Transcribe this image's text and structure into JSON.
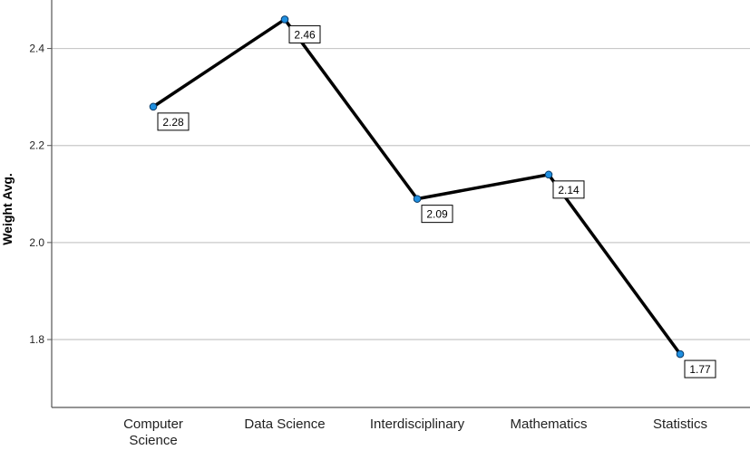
{
  "chart_data": {
    "type": "line",
    "title": "",
    "xlabel": "",
    "ylabel": "Weight Avg.",
    "categories": [
      "Computer Science",
      "Data Science",
      "Interdisciplinary",
      "Mathematics",
      "Statistics"
    ],
    "category_lines": [
      [
        "Computer",
        "Science"
      ],
      [
        "Data Science"
      ],
      [
        "Interdisciplinary"
      ],
      [
        "Mathematics"
      ],
      [
        "Statistics"
      ]
    ],
    "series": [
      {
        "values": [
          2.28,
          2.46,
          2.09,
          2.14,
          1.77
        ],
        "labels": [
          "2.28",
          "2.46",
          "2.09",
          "2.14",
          "1.77"
        ]
      }
    ],
    "ylim": [
      1.66,
      2.5
    ],
    "yticks": [
      1.8,
      2.0,
      2.2,
      2.4
    ],
    "ytick_labels": [
      "1.8",
      "2.0",
      "2.2",
      "2.4"
    ],
    "grid": "horizontal",
    "legend": "none"
  },
  "colors": {
    "line": "#000000",
    "marker_fill": "#1f8fe0",
    "marker_stroke": "#0b3a66",
    "grid": "#c8c8c8",
    "axis": "#555555"
  }
}
